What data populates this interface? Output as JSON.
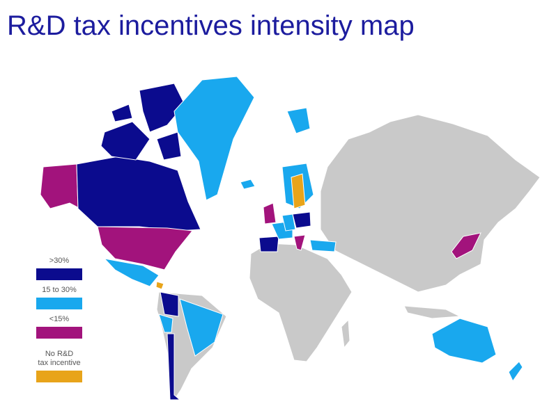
{
  "title": "R&D tax incentives intensity map",
  "legend": [
    {
      "lines": [
        ">30%"
      ],
      "color": "#0b0b8e"
    },
    {
      "lines": [
        "15 to 30%"
      ],
      "color": "#19a8ee"
    },
    {
      "lines": [
        "<15%"
      ],
      "color": "#a2137c"
    },
    {
      "lines": [
        "No R&D",
        "tax incentive"
      ],
      "color": "#e8a41a"
    }
  ]
}
